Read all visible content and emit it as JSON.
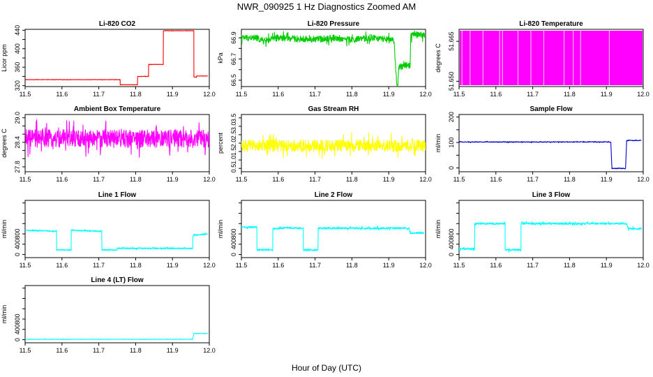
{
  "title": "NWR_090925  1 Hz Diagnostics Zoomed AM",
  "xlabel": "Hour of Day (UTC)",
  "chart_data": [
    {
      "id": "co2",
      "type": "line",
      "title": "Li-820 CO2",
      "ylabel": "Licor ppm",
      "color": "#ff0000",
      "noise": 0.4,
      "xlim": [
        11.5,
        12.0
      ],
      "xticks": [
        11.5,
        11.6,
        11.7,
        11.8,
        11.9,
        12.0
      ],
      "ylim": [
        318,
        442
      ],
      "yticks": [
        320,
        340,
        360,
        380,
        400,
        420,
        440
      ],
      "yticklabels": [
        "320",
        "",
        "360",
        "",
        "400",
        "",
        "440"
      ],
      "points": [
        [
          11.5,
          333
        ],
        [
          11.758,
          333
        ],
        [
          11.758,
          322
        ],
        [
          11.805,
          322
        ],
        [
          11.805,
          340
        ],
        [
          11.835,
          340
        ],
        [
          11.835,
          366
        ],
        [
          11.875,
          366
        ],
        [
          11.875,
          439
        ],
        [
          11.958,
          439
        ],
        [
          11.958,
          339
        ],
        [
          11.965,
          338
        ],
        [
          11.965,
          341
        ],
        [
          11.995,
          341
        ]
      ]
    },
    {
      "id": "pressure",
      "type": "line",
      "title": "Li-820 Pressure",
      "ylabel": "kPa",
      "color": "#00cc00",
      "noise": 0.03,
      "xlim": [
        11.5,
        12.0
      ],
      "xticks": [
        11.5,
        11.6,
        11.7,
        11.8,
        11.9,
        12.0
      ],
      "ylim": [
        66.44,
        66.98
      ],
      "yticks": [
        66.5,
        66.6,
        66.7,
        66.8,
        66.9
      ],
      "yticklabels": [
        "66.5",
        "",
        "66.7",
        "",
        "66.9"
      ],
      "points": [
        [
          11.5,
          66.9
        ],
        [
          11.54,
          66.9
        ],
        [
          11.56,
          66.87
        ],
        [
          11.6,
          66.9
        ],
        [
          11.65,
          66.89
        ],
        [
          11.7,
          66.885
        ],
        [
          11.75,
          66.9
        ],
        [
          11.8,
          66.88
        ],
        [
          11.86,
          66.9
        ],
        [
          11.9,
          66.88
        ],
        [
          11.914,
          66.87
        ],
        [
          11.922,
          66.47
        ],
        [
          11.925,
          66.47
        ],
        [
          11.927,
          66.62
        ],
        [
          11.942,
          66.63
        ],
        [
          11.944,
          66.64
        ],
        [
          11.958,
          66.64
        ],
        [
          11.96,
          66.92
        ],
        [
          11.97,
          66.94
        ],
        [
          11.997,
          66.92
        ]
      ]
    },
    {
      "id": "licor_temp",
      "type": "area",
      "title": "Li-820 Temperature",
      "ylabel": "degrees C",
      "color": "#ff00ff",
      "xlim": [
        11.5,
        12.0
      ],
      "xticks": [
        11.5,
        11.6,
        11.7,
        11.8,
        11.9,
        12.0
      ],
      "ylim": [
        51.648,
        51.6695
      ],
      "yticks": [
        51.65,
        51.665
      ],
      "yticklabels": [
        "51.650",
        "51.665"
      ],
      "gaps": [
        11.508,
        11.53,
        11.565,
        11.61,
        11.618,
        11.66,
        11.695,
        11.73,
        11.785,
        11.81,
        11.83,
        11.908
      ]
    },
    {
      "id": "box_temp",
      "type": "line",
      "title": "Ambient Box Temperature",
      "ylabel": "degrees C",
      "color": "#ff00ff",
      "noise": 0.22,
      "xlim": [
        11.5,
        12.0
      ],
      "xticks": [
        11.5,
        11.6,
        11.7,
        11.8,
        11.9,
        12.0
      ],
      "ylim": [
        27.68,
        29.08
      ],
      "yticks": [
        27.8,
        28.0,
        28.2,
        28.4,
        28.6,
        28.8,
        29.0
      ],
      "yticklabels": [
        "27.8",
        "",
        "",
        "28.4",
        "",
        "",
        "29.0"
      ],
      "points": [
        [
          11.5,
          28.49
        ],
        [
          12.0,
          28.49
        ]
      ]
    },
    {
      "id": "rh",
      "type": "line",
      "title": "Gas Stream RH",
      "ylabel": "percent",
      "color": "#ffff00",
      "noise": 0.35,
      "xlim": [
        11.5,
        12.0
      ],
      "xticks": [
        11.5,
        11.6,
        11.7,
        11.8,
        11.9,
        12.0
      ],
      "ylim": [
        0.3,
        3.7
      ],
      "yticks": [
        0.5,
        1.0,
        1.5,
        2.0,
        2.5,
        3.0,
        3.5
      ],
      "yticklabels": [
        "0.5",
        "1.0",
        "1.5",
        "2.0",
        "2.5",
        "3.0",
        "3.5"
      ],
      "points": [
        [
          11.5,
          1.85
        ],
        [
          12.0,
          1.85
        ]
      ]
    },
    {
      "id": "sample_flow",
      "type": "line",
      "title": "Sample Flow",
      "ylabel": "ml/min",
      "color": "#0000cc",
      "noise": 1.5,
      "xlim": [
        11.5,
        12.0
      ],
      "xticks": [
        11.5,
        11.6,
        11.7,
        11.8,
        11.9,
        12.0
      ],
      "ylim": [
        -15,
        210
      ],
      "yticks": [
        0,
        50,
        100,
        150,
        200
      ],
      "yticklabels": [
        "0",
        "",
        "100",
        "",
        "200"
      ],
      "points": [
        [
          11.5,
          102
        ],
        [
          11.912,
          102
        ],
        [
          11.915,
          -2
        ],
        [
          11.952,
          -2
        ],
        [
          11.955,
          108
        ],
        [
          11.995,
          108
        ]
      ]
    },
    {
      "id": "line1",
      "type": "line",
      "title": "Line 1 Flow",
      "ylabel": "ml/min",
      "color": "#00ffff",
      "noise": 12,
      "xlim": [
        11.5,
        12.0
      ],
      "xticks": [
        11.5,
        11.6,
        11.7,
        11.8,
        11.9,
        12.0
      ],
      "ylim": [
        -60,
        1050
      ],
      "yticks": [
        0,
        200,
        400,
        600,
        800,
        1000
      ],
      "yticklabels": [
        "0",
        "400",
        "800"
      ],
      "points": [
        [
          11.5,
          470
        ],
        [
          11.585,
          450
        ],
        [
          11.585,
          90
        ],
        [
          11.625,
          90
        ],
        [
          11.625,
          470
        ],
        [
          11.708,
          450
        ],
        [
          11.708,
          90
        ],
        [
          11.75,
          90
        ],
        [
          11.75,
          120
        ],
        [
          11.955,
          120
        ],
        [
          11.955,
          370
        ],
        [
          11.995,
          400
        ]
      ]
    },
    {
      "id": "line2",
      "type": "line",
      "title": "Line 2 Flow",
      "ylabel": "ml/min",
      "color": "#00ffff",
      "noise": 18,
      "xlim": [
        11.5,
        12.0
      ],
      "xticks": [
        11.5,
        11.6,
        11.7,
        11.8,
        11.9,
        12.0
      ],
      "ylim": [
        -60,
        1050
      ],
      "yticks": [
        0,
        200,
        400,
        600,
        800,
        1000
      ],
      "yticklabels": [
        "0",
        "400",
        "800"
      ],
      "points": [
        [
          11.5,
          530
        ],
        [
          11.542,
          530
        ],
        [
          11.542,
          90
        ],
        [
          11.585,
          90
        ],
        [
          11.585,
          500
        ],
        [
          11.625,
          520
        ],
        [
          11.668,
          510
        ],
        [
          11.668,
          90
        ],
        [
          11.708,
          90
        ],
        [
          11.708,
          510
        ],
        [
          11.955,
          510
        ],
        [
          11.958,
          420
        ],
        [
          11.995,
          420
        ]
      ]
    },
    {
      "id": "line3",
      "type": "line",
      "title": "Line 3 Flow",
      "ylabel": "ml/min",
      "color": "#00ffff",
      "noise": 18,
      "xlim": [
        11.5,
        12.0
      ],
      "xticks": [
        11.5,
        11.6,
        11.7,
        11.8,
        11.9,
        12.0
      ],
      "ylim": [
        -60,
        1050
      ],
      "yticks": [
        0,
        200,
        400,
        600,
        800,
        1000
      ],
      "yticklabels": [
        "0",
        "400",
        "800"
      ],
      "points": [
        [
          11.5,
          110
        ],
        [
          11.542,
          110
        ],
        [
          11.542,
          600
        ],
        [
          11.625,
          600
        ],
        [
          11.625,
          90
        ],
        [
          11.668,
          90
        ],
        [
          11.668,
          600
        ],
        [
          11.955,
          600
        ],
        [
          11.96,
          500
        ],
        [
          11.995,
          500
        ]
      ]
    },
    {
      "id": "line4",
      "type": "line",
      "title": "Line 4 (LT) Flow",
      "ylabel": "ml/min",
      "color": "#00ffff",
      "noise": 4,
      "xlim": [
        11.5,
        12.0
      ],
      "xticks": [
        11.5,
        11.6,
        11.7,
        11.8,
        11.9,
        12.0
      ],
      "ylim": [
        -60,
        1050
      ],
      "yticks": [
        0,
        200,
        400,
        600,
        800,
        1000
      ],
      "yticklabels": [
        "0",
        "400",
        "800"
      ],
      "points": [
        [
          11.5,
          8
        ],
        [
          11.955,
          8
        ],
        [
          11.958,
          120
        ],
        [
          11.995,
          120
        ]
      ]
    }
  ]
}
